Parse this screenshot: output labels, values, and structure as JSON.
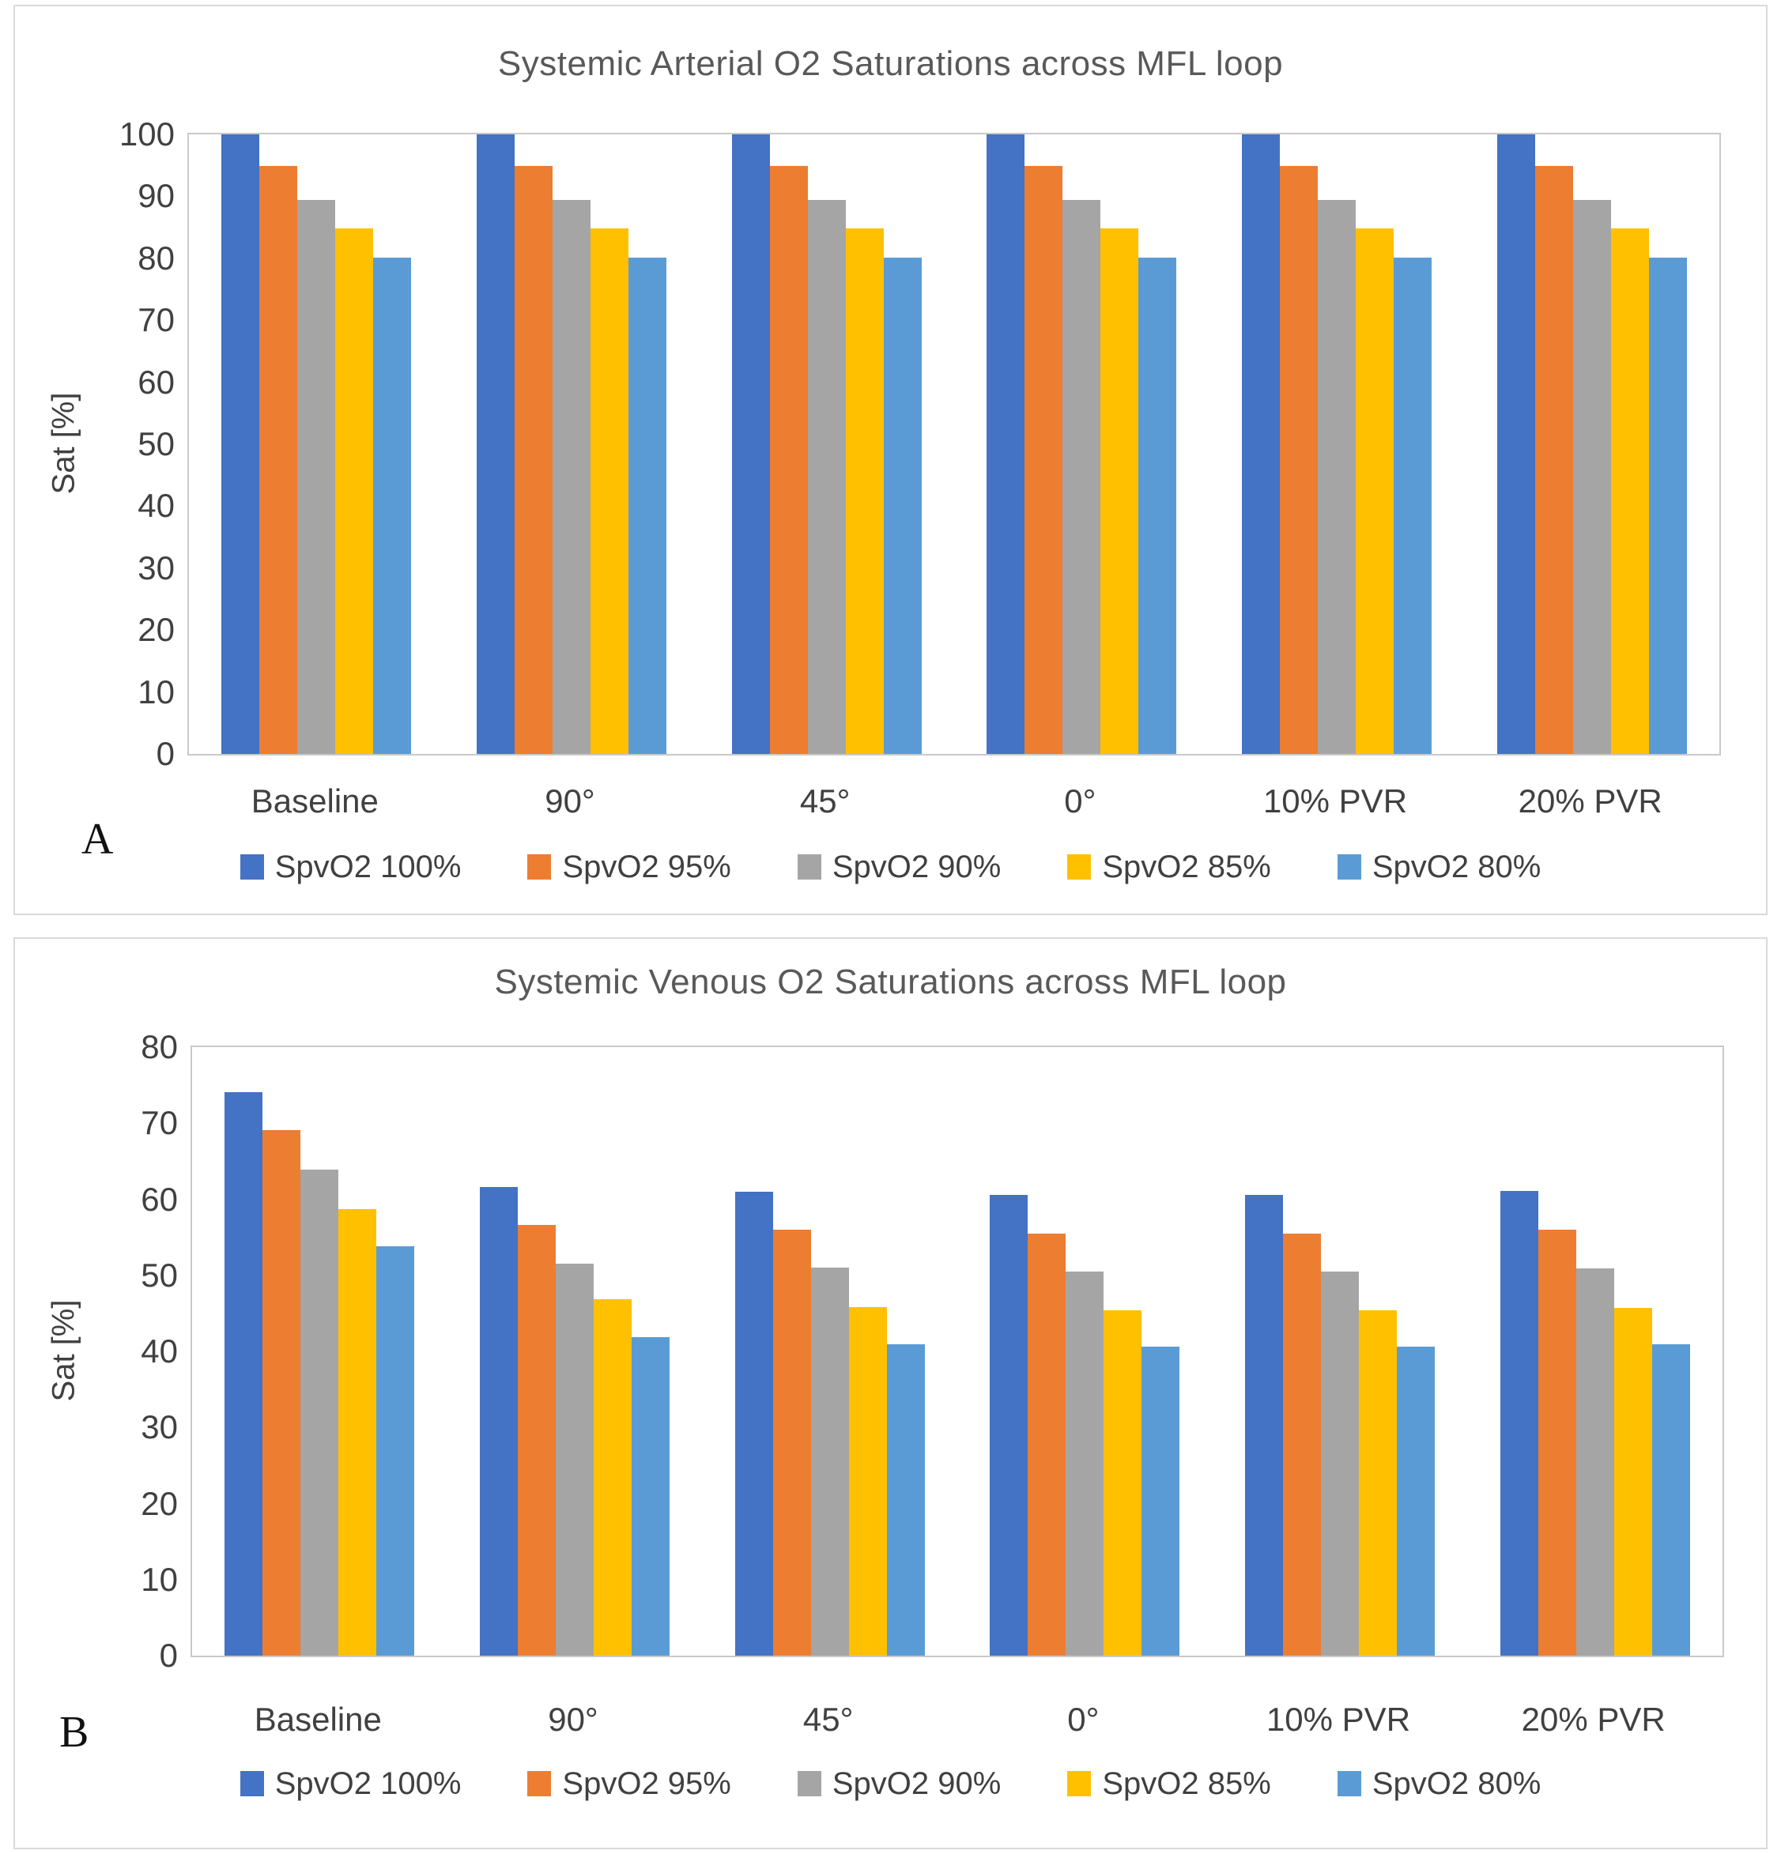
{
  "figure": {
    "background": "#ffffff",
    "panel_border_color": "#dadada",
    "axis_color": "#c9c9c9",
    "text_color": "#404040",
    "title_color": "#595959"
  },
  "chart_data": [
    {
      "type": "bar",
      "panel_label": "A",
      "title": "Systemic Arterial O2 Saturations across MFL loop",
      "xlabel": "",
      "ylabel": "Sat [%]",
      "ylim": [
        0,
        100
      ],
      "ytick_step": 10,
      "grid": false,
      "legend_position": "bottom",
      "categories": [
        "Baseline",
        "90°",
        "45°",
        "0°",
        "10% PVR",
        "20% PVR"
      ],
      "series": [
        {
          "name": "SpvO2 100%",
          "color": "#4472C4",
          "values": [
            100,
            100,
            100,
            100,
            100,
            100
          ]
        },
        {
          "name": "SpvO2 95%",
          "color": "#ED7D31",
          "values": [
            94.9,
            94.9,
            94.9,
            94.9,
            94.9,
            94.9
          ]
        },
        {
          "name": "SpvO2 90%",
          "color": "#A5A5A5",
          "values": [
            89.4,
            89.4,
            89.4,
            89.4,
            89.4,
            89.4
          ]
        },
        {
          "name": "SpvO2 85%",
          "color": "#FFC000",
          "values": [
            84.8,
            84.8,
            84.8,
            84.8,
            84.8,
            84.8
          ]
        },
        {
          "name": "SpvO2 80%",
          "color": "#5B9BD5",
          "values": [
            80.1,
            80.1,
            80.1,
            80.1,
            80.1,
            80.1
          ]
        }
      ]
    },
    {
      "type": "bar",
      "panel_label": "B",
      "title": "Systemic Venous O2 Saturations across MFL loop",
      "xlabel": "",
      "ylabel": "Sat [%]",
      "ylim": [
        0,
        80
      ],
      "ytick_step": 10,
      "grid": false,
      "legend_position": "bottom",
      "categories": [
        "Baseline",
        "90°",
        "45°",
        "0°",
        "10% PVR",
        "20% PVR"
      ],
      "series": [
        {
          "name": "SpvO2 100%",
          "color": "#4472C4",
          "values": [
            74.1,
            61.6,
            61.0,
            60.6,
            60.6,
            61.1
          ]
        },
        {
          "name": "SpvO2 95%",
          "color": "#ED7D31",
          "values": [
            69.1,
            56.6,
            56.0,
            55.5,
            55.5,
            56.0
          ]
        },
        {
          "name": "SpvO2 90%",
          "color": "#A5A5A5",
          "values": [
            63.9,
            51.5,
            51.0,
            50.5,
            50.5,
            50.9
          ]
        },
        {
          "name": "SpvO2 85%",
          "color": "#FFC000",
          "values": [
            58.7,
            46.9,
            45.8,
            45.4,
            45.4,
            45.7
          ]
        },
        {
          "name": "SpvO2 80%",
          "color": "#5B9BD5",
          "values": [
            53.8,
            41.9,
            40.9,
            40.6,
            40.6,
            40.9
          ]
        }
      ]
    }
  ]
}
